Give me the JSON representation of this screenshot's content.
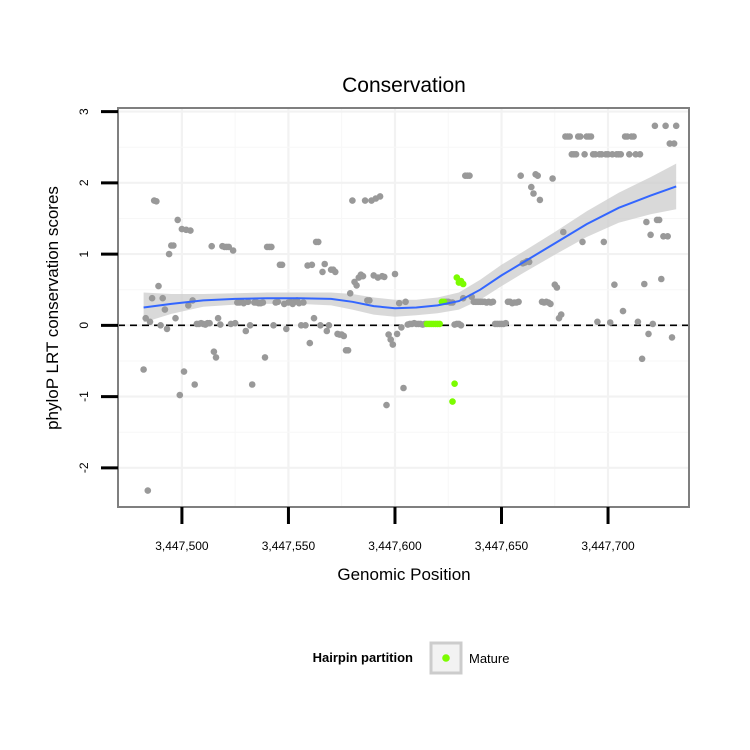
{
  "chart_data": {
    "type": "scatter",
    "title": "Conservation",
    "xlabel": "Genomic Position",
    "ylabel": "phyloP LRT conservation scores",
    "xlim": [
      3447470,
      3447738
    ],
    "ylim": [
      -2.55,
      3.05
    ],
    "x_ticks": [
      3447500,
      3447550,
      3447600,
      3447650,
      3447700
    ],
    "x_tick_labels": [
      "3,447,500",
      "3,447,550",
      "3,447,600",
      "3,447,650",
      "3,447,700"
    ],
    "y_ticks": [
      -2,
      -1,
      0,
      1,
      2,
      3
    ],
    "y_tick_labels": [
      "-2",
      "-1",
      "0",
      "1",
      "2",
      "3"
    ],
    "reference_line": {
      "y": 0,
      "style": "dashed"
    },
    "grid": true,
    "legend": {
      "title": "Hairpin partition",
      "placement": "bottom",
      "entries": [
        "Mature"
      ]
    },
    "colors": {
      "other": "#999999",
      "mature": "#7cfc00",
      "smooth": "#3366ff",
      "band": "#cccccc"
    },
    "series": [
      {
        "role": "other",
        "points": [
          [
            3447482,
            -0.62
          ],
          [
            3447483,
            0.1
          ],
          [
            3447484,
            -2.32
          ],
          [
            3447485,
            0.05
          ],
          [
            3447486,
            0.38
          ],
          [
            3447487,
            1.75
          ],
          [
            3447488,
            1.74
          ],
          [
            3447489,
            0.55
          ],
          [
            3447490,
            0.0
          ],
          [
            3447491,
            0.38
          ],
          [
            3447492,
            0.22
          ],
          [
            3447493,
            -0.05
          ],
          [
            3447494,
            1.0
          ],
          [
            3447495,
            1.12
          ],
          [
            3447496,
            1.12
          ],
          [
            3447497,
            0.1
          ],
          [
            3447498,
            1.48
          ],
          [
            3447499,
            -0.98
          ],
          [
            3447500,
            1.35
          ],
          [
            3447501,
            -0.65
          ],
          [
            3447502,
            1.34
          ],
          [
            3447503,
            0.28
          ],
          [
            3447504,
            1.33
          ],
          [
            3447505,
            0.35
          ],
          [
            3447506,
            -0.83
          ],
          [
            3447507,
            0.02
          ],
          [
            3447508,
            0.02
          ],
          [
            3447509,
            0.03
          ],
          [
            3447510,
            0.02
          ],
          [
            3447511,
            0.01
          ],
          [
            3447512,
            0.03
          ],
          [
            3447513,
            0.03
          ],
          [
            3447514,
            1.11
          ],
          [
            3447515,
            -0.37
          ],
          [
            3447516,
            -0.45
          ],
          [
            3447517,
            0.1
          ],
          [
            3447518,
            0.01
          ],
          [
            3447519,
            1.11
          ],
          [
            3447520,
            1.1
          ],
          [
            3447521,
            1.1
          ],
          [
            3447522,
            1.1
          ],
          [
            3447523,
            0.02
          ],
          [
            3447524,
            1.05
          ],
          [
            3447525,
            0.03
          ],
          [
            3447526,
            0.32
          ],
          [
            3447527,
            0.32
          ],
          [
            3447528,
            0.33
          ],
          [
            3447529,
            0.31
          ],
          [
            3447530,
            -0.08
          ],
          [
            3447531,
            0.33
          ],
          [
            3447532,
            0.0
          ],
          [
            3447533,
            -0.83
          ],
          [
            3447534,
            0.32
          ],
          [
            3447535,
            0.32
          ],
          [
            3447536,
            0.31
          ],
          [
            3447537,
            0.31
          ],
          [
            3447538,
            0.32
          ],
          [
            3447539,
            -0.45
          ],
          [
            3447540,
            1.1
          ],
          [
            3447541,
            1.1
          ],
          [
            3447542,
            1.1
          ],
          [
            3447543,
            0.0
          ],
          [
            3447544,
            0.32
          ],
          [
            3447545,
            0.33
          ],
          [
            3447546,
            0.85
          ],
          [
            3447547,
            0.85
          ],
          [
            3447548,
            0.3
          ],
          [
            3447549,
            -0.05
          ],
          [
            3447550,
            0.32
          ],
          [
            3447551,
            0.33
          ],
          [
            3447552,
            0.3
          ],
          [
            3447553,
            0.33
          ],
          [
            3447554,
            0.35
          ],
          [
            3447555,
            0.31
          ],
          [
            3447556,
            0.0
          ],
          [
            3447557,
            0.32
          ],
          [
            3447558,
            0.0
          ],
          [
            3447559,
            0.84
          ],
          [
            3447560,
            -0.25
          ],
          [
            3447561,
            0.85
          ],
          [
            3447562,
            0.1
          ],
          [
            3447563,
            1.17
          ],
          [
            3447564,
            1.17
          ],
          [
            3447565,
            0.0
          ],
          [
            3447566,
            0.75
          ],
          [
            3447567,
            0.86
          ],
          [
            3447568,
            -0.08
          ],
          [
            3447569,
            0.0
          ],
          [
            3447570,
            0.78
          ],
          [
            3447571,
            0.78
          ],
          [
            3447572,
            0.75
          ],
          [
            3447573,
            -0.12
          ],
          [
            3447574,
            -0.13
          ],
          [
            3447575,
            -0.13
          ],
          [
            3447576,
            -0.15
          ],
          [
            3447577,
            -0.35
          ],
          [
            3447578,
            -0.35
          ],
          [
            3447579,
            0.45
          ],
          [
            3447580,
            1.75
          ],
          [
            3447581,
            0.61
          ],
          [
            3447582,
            0.56
          ],
          [
            3447583,
            0.67
          ],
          [
            3447584,
            0.71
          ],
          [
            3447585,
            0.69
          ],
          [
            3447586,
            1.75
          ],
          [
            3447587,
            0.35
          ],
          [
            3447588,
            0.35
          ],
          [
            3447589,
            1.75
          ],
          [
            3447590,
            0.7
          ],
          [
            3447591,
            1.78
          ],
          [
            3447592,
            0.67
          ],
          [
            3447593,
            1.81
          ],
          [
            3447594,
            0.69
          ],
          [
            3447595,
            0.68
          ],
          [
            3447596,
            -1.12
          ],
          [
            3447597,
            -0.13
          ],
          [
            3447598,
            -0.2
          ],
          [
            3447599,
            -0.27
          ],
          [
            3447600,
            0.72
          ],
          [
            3447601,
            -0.12
          ],
          [
            3447602,
            0.31
          ],
          [
            3447603,
            -0.03
          ],
          [
            3447604,
            -0.88
          ],
          [
            3447605,
            0.33
          ],
          [
            3447606,
            0.01
          ],
          [
            3447607,
            0.02
          ],
          [
            3447608,
            0.02
          ],
          [
            3447609,
            0.03
          ],
          [
            3447610,
            0.02
          ],
          [
            3447611,
            0.02
          ],
          [
            3447612,
            0.02
          ],
          [
            3447613,
            0.01
          ],
          [
            3447614,
            0.02
          ],
          [
            3447624,
            0.33
          ],
          [
            3447625,
            0.33
          ],
          [
            3447626,
            0.32
          ],
          [
            3447627,
            0.32
          ],
          [
            3447628,
            0.01
          ],
          [
            3447629,
            0.02
          ],
          [
            3447630,
            0.02
          ],
          [
            3447631,
            0.0
          ],
          [
            3447632,
            0.38
          ],
          [
            3447633,
            2.1
          ],
          [
            3447634,
            2.1
          ],
          [
            3447635,
            2.1
          ],
          [
            3447636,
            0.4
          ],
          [
            3447637,
            0.33
          ],
          [
            3447638,
            0.33
          ],
          [
            3447639,
            0.33
          ],
          [
            3447640,
            0.33
          ],
          [
            3447641,
            0.33
          ],
          [
            3447642,
            0.33
          ],
          [
            3447643,
            0.32
          ],
          [
            3447644,
            0.33
          ],
          [
            3447645,
            0.32
          ],
          [
            3447646,
            0.33
          ],
          [
            3447647,
            0.02
          ],
          [
            3447648,
            0.02
          ],
          [
            3447649,
            0.02
          ],
          [
            3447650,
            0.02
          ],
          [
            3447651,
            0.02
          ],
          [
            3447652,
            0.03
          ],
          [
            3447653,
            0.33
          ],
          [
            3447654,
            0.33
          ],
          [
            3447655,
            0.31
          ],
          [
            3447656,
            0.32
          ],
          [
            3447657,
            0.32
          ],
          [
            3447658,
            0.33
          ],
          [
            3447659,
            2.1
          ],
          [
            3447660,
            0.87
          ],
          [
            3447661,
            0.88
          ],
          [
            3447662,
            0.9
          ],
          [
            3447663,
            0.89
          ],
          [
            3447664,
            1.94
          ],
          [
            3447665,
            1.85
          ],
          [
            3447666,
            2.12
          ],
          [
            3447667,
            2.1
          ],
          [
            3447668,
            1.76
          ],
          [
            3447669,
            0.33
          ],
          [
            3447670,
            0.32
          ],
          [
            3447671,
            0.33
          ],
          [
            3447672,
            0.32
          ],
          [
            3447673,
            0.3
          ],
          [
            3447674,
            2.06
          ],
          [
            3447675,
            0.57
          ],
          [
            3447676,
            0.53
          ],
          [
            3447677,
            0.1
          ],
          [
            3447678,
            0.15
          ],
          [
            3447679,
            1.31
          ],
          [
            3447680,
            2.65
          ],
          [
            3447681,
            2.65
          ],
          [
            3447682,
            2.65
          ],
          [
            3447683,
            2.4
          ],
          [
            3447684,
            2.4
          ],
          [
            3447685,
            2.4
          ],
          [
            3447686,
            2.65
          ],
          [
            3447687,
            2.65
          ],
          [
            3447688,
            1.17
          ],
          [
            3447689,
            2.4
          ],
          [
            3447690,
            2.65
          ],
          [
            3447691,
            2.65
          ],
          [
            3447692,
            2.65
          ],
          [
            3447693,
            2.4
          ],
          [
            3447694,
            2.4
          ],
          [
            3447695,
            0.05
          ],
          [
            3447696,
            2.4
          ],
          [
            3447697,
            2.4
          ],
          [
            3447698,
            1.17
          ],
          [
            3447699,
            2.4
          ],
          [
            3447700,
            2.4
          ],
          [
            3447701,
            0.04
          ],
          [
            3447702,
            2.4
          ],
          [
            3447703,
            0.57
          ],
          [
            3447704,
            2.4
          ],
          [
            3447705,
            2.4
          ],
          [
            3447706,
            2.4
          ],
          [
            3447707,
            0.2
          ],
          [
            3447708,
            2.65
          ],
          [
            3447709,
            2.65
          ],
          [
            3447710,
            2.4
          ],
          [
            3447711,
            2.65
          ],
          [
            3447712,
            2.65
          ],
          [
            3447713,
            2.4
          ],
          [
            3447714,
            0.05
          ],
          [
            3447715,
            2.4
          ],
          [
            3447716,
            -0.47
          ],
          [
            3447717,
            0.58
          ],
          [
            3447718,
            1.45
          ],
          [
            3447719,
            -0.12
          ],
          [
            3447720,
            1.27
          ],
          [
            3447721,
            0.02
          ],
          [
            3447722,
            2.8
          ],
          [
            3447723,
            1.48
          ],
          [
            3447724,
            1.48
          ],
          [
            3447725,
            0.65
          ],
          [
            3447726,
            1.25
          ],
          [
            3447727,
            2.8
          ],
          [
            3447728,
            1.25
          ],
          [
            3447729,
            2.55
          ],
          [
            3447730,
            -0.17
          ],
          [
            3447731,
            2.55
          ],
          [
            3447732,
            2.8
          ]
        ]
      },
      {
        "role": "mature",
        "name": "Mature",
        "points": [
          [
            3447615,
            0.02
          ],
          [
            3447616,
            0.02
          ],
          [
            3447617,
            0.02
          ],
          [
            3447618,
            0.02
          ],
          [
            3447619,
            0.02
          ],
          [
            3447620,
            0.02
          ],
          [
            3447621,
            0.02
          ],
          [
            3447622,
            0.33
          ],
          [
            3447623,
            0.33
          ],
          [
            3447628,
            -0.82
          ],
          [
            3447629,
            0.67
          ],
          [
            3447630,
            0.6
          ],
          [
            3447631,
            0.62
          ],
          [
            3447632,
            0.58
          ],
          [
            3447627,
            -1.07
          ]
        ]
      }
    ],
    "smooth": {
      "x": [
        3447482,
        3447495,
        3447510,
        3447525,
        3447540,
        3447555,
        3447570,
        3447580,
        3447590,
        3447600,
        3447610,
        3447620,
        3447630,
        3447640,
        3447650,
        3447660,
        3447675,
        3447690,
        3447705,
        3447720,
        3447732
      ],
      "y": [
        0.25,
        0.3,
        0.35,
        0.37,
        0.38,
        0.38,
        0.37,
        0.33,
        0.27,
        0.24,
        0.25,
        0.28,
        0.34,
        0.5,
        0.7,
        0.88,
        1.15,
        1.42,
        1.65,
        1.82,
        1.95
      ],
      "lower": [
        0.04,
        0.16,
        0.26,
        0.29,
        0.3,
        0.3,
        0.28,
        0.22,
        0.15,
        0.12,
        0.14,
        0.17,
        0.22,
        0.36,
        0.55,
        0.73,
        0.99,
        1.24,
        1.44,
        1.56,
        1.63
      ],
      "upper": [
        0.46,
        0.44,
        0.44,
        0.45,
        0.46,
        0.46,
        0.46,
        0.44,
        0.39,
        0.36,
        0.36,
        0.39,
        0.46,
        0.64,
        0.85,
        1.03,
        1.31,
        1.6,
        1.86,
        2.08,
        2.27
      ]
    }
  }
}
